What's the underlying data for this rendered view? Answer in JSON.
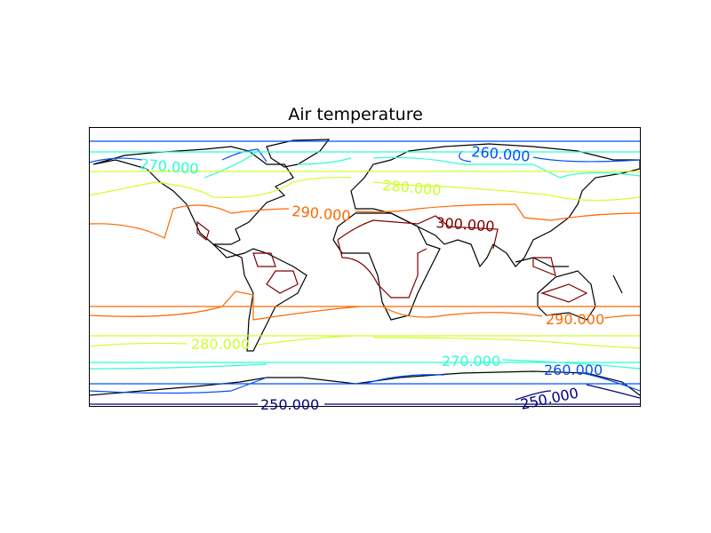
{
  "title": "Air temperature",
  "chart_data": {
    "type": "contour",
    "title": "Air temperature",
    "projection": "cylindrical (plate carree), global",
    "levels": [
      250,
      260,
      270,
      280,
      290,
      300
    ],
    "level_colors": {
      "250": "#00007f",
      "260": "#0050ff",
      "270": "#29ffce",
      "280": "#ceff29",
      "290": "#ff6800",
      "300": "#7f0000"
    },
    "coastlines": true,
    "labels": [
      {
        "text": "270.000",
        "level": 270
      },
      {
        "text": "260.000",
        "level": 260
      },
      {
        "text": "280.000",
        "level": 280
      },
      {
        "text": "290.000",
        "level": 290
      },
      {
        "text": "300.000",
        "level": 300
      },
      {
        "text": "290.000",
        "level": 290
      },
      {
        "text": "280.000",
        "level": 280
      },
      {
        "text": "270.000",
        "level": 270
      },
      {
        "text": "260.000",
        "level": 260
      },
      {
        "text": "250.000",
        "level": 250
      },
      {
        "text": "250.000",
        "level": 250
      }
    ]
  }
}
